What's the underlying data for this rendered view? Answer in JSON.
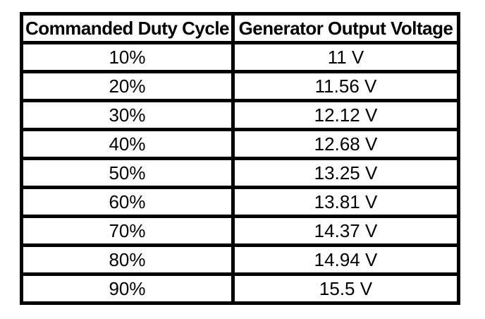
{
  "table": {
    "columns": [
      "Commanded Duty Cycle",
      "Generator Output Voltage"
    ],
    "rows": [
      [
        "10%",
        "11 V"
      ],
      [
        "20%",
        "11.56 V"
      ],
      [
        "30%",
        "12.12 V"
      ],
      [
        "40%",
        "12.68 V"
      ],
      [
        "50%",
        "13.25 V"
      ],
      [
        "60%",
        "13.81 V"
      ],
      [
        "70%",
        "14.37 V"
      ],
      [
        "80%",
        "14.94 V"
      ],
      [
        "90%",
        "15.5 V"
      ]
    ]
  },
  "chart_data": {
    "type": "table",
    "title": "",
    "columns": [
      "Commanded Duty Cycle",
      "Generator Output Voltage"
    ],
    "x_label": "Commanded Duty Cycle",
    "y_label": "Generator Output Voltage",
    "duty_cycle_percent": [
      10,
      20,
      30,
      40,
      50,
      60,
      70,
      80,
      90
    ],
    "output_voltage_v": [
      11,
      11.56,
      12.12,
      12.68,
      13.25,
      13.81,
      14.37,
      14.94,
      15.5
    ]
  },
  "colors": {
    "background": "#ffffff",
    "border": "#000000",
    "text": "#000000"
  }
}
